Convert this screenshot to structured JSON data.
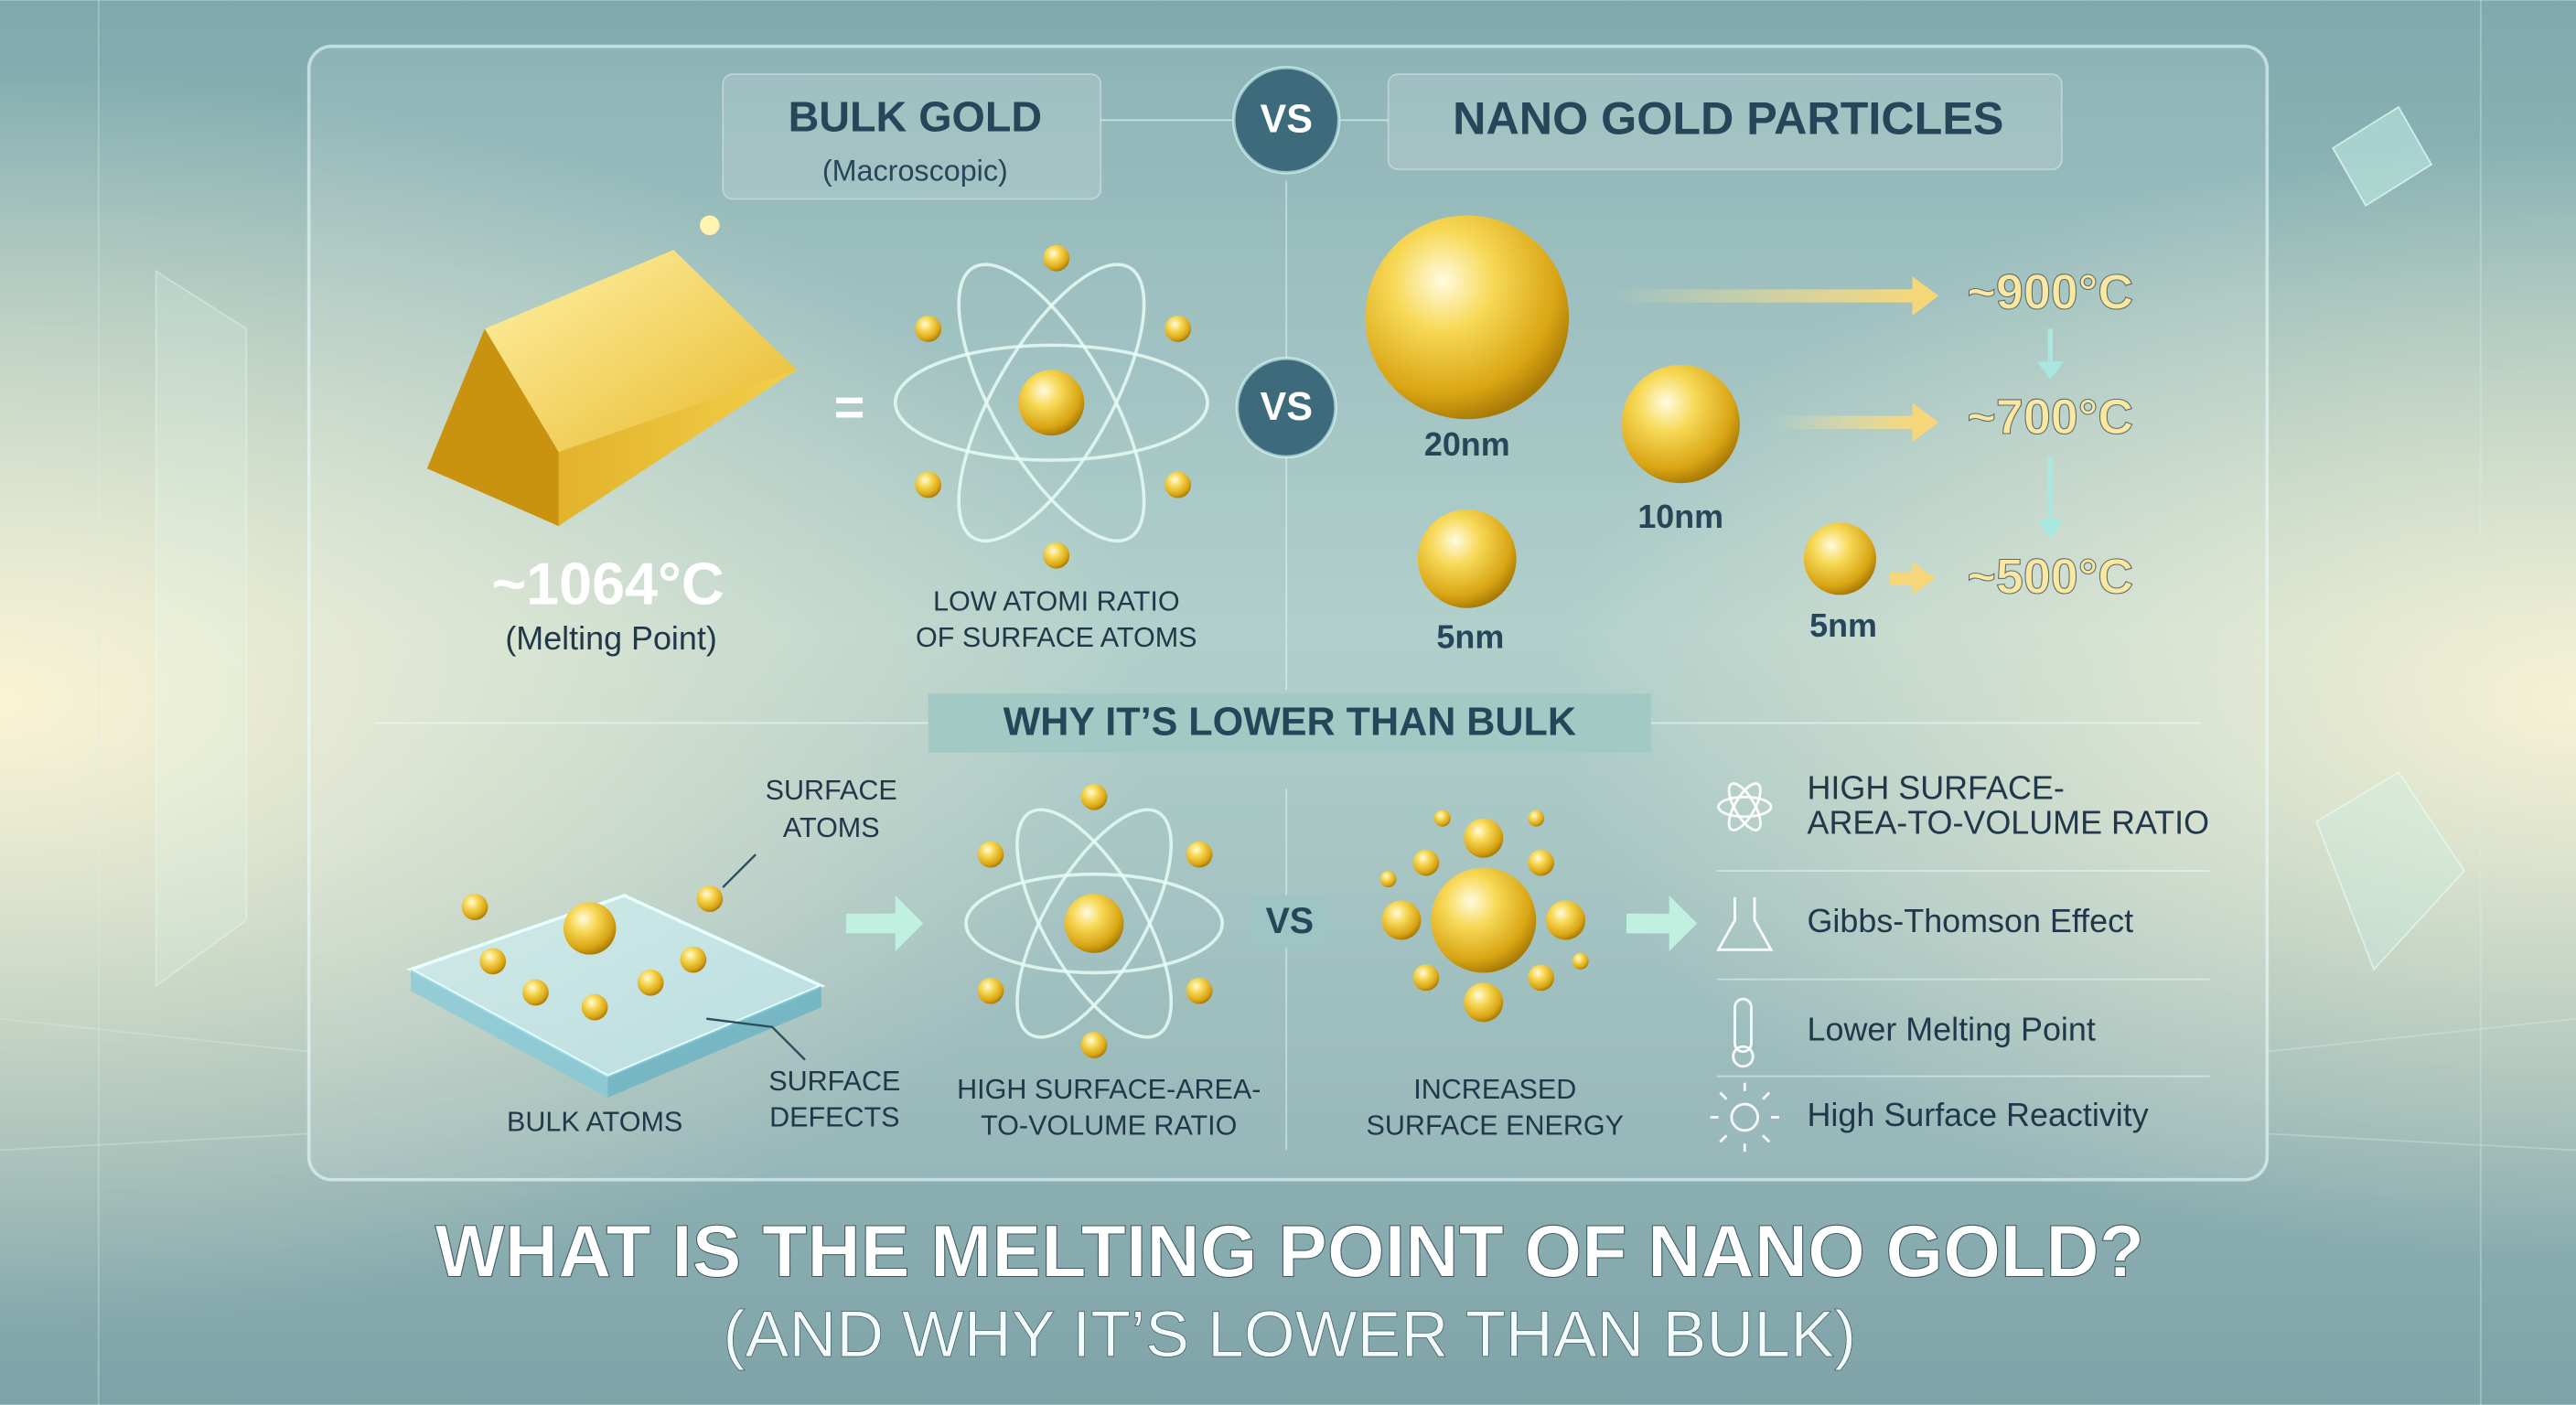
{
  "header": {
    "left_title": "BULK GOLD",
    "left_subtitle": "(Macroscopic)",
    "vs": "VS",
    "right_title": "NANO GOLD PARTICLES"
  },
  "bulk": {
    "equals": "=",
    "temperature": "~1064°C",
    "temperature_note": "(Melting Point)",
    "atom_caption": [
      "LOW ATOMI RATIO",
      "OF SURFACE ATOMS"
    ],
    "vs": "VS"
  },
  "nano": {
    "particles": [
      {
        "size": "20nm"
      },
      {
        "size": "10nm"
      },
      {
        "size": "5nm"
      },
      {
        "size": "5nm"
      }
    ],
    "temperatures": [
      "~900°C",
      "~700°C",
      "~500°C"
    ]
  },
  "section_heading": "WHY IT’S LOWER THAN BULK",
  "explanation": {
    "surface_atoms": [
      "SURFACE",
      "ATOMS"
    ],
    "bulk_atoms": "BULK ATOMS",
    "surface_defects": [
      "SURFACE",
      "DEFECTS"
    ],
    "ratio_caption": [
      "HIGH SURFACE-AREA-",
      "TO-VOLUME RATIO"
    ],
    "vs": "VS",
    "energy_caption": [
      "INCREASED",
      "SURFACE ENERGY"
    ],
    "list": [
      [
        "HIGH SURFACE-",
        "AREA-TO-VOLUME RATIO"
      ],
      [
        "Gibbs-Thomson Effect"
      ],
      [
        "Lower Melting Point"
      ],
      [
        "High Surface Reactivity"
      ]
    ]
  },
  "footer": {
    "title": "WHAT IS THE MELTING POINT OF NANO GOLD?",
    "subtitle": "(AND WHY IT’S LOWER THAN BULK)"
  }
}
